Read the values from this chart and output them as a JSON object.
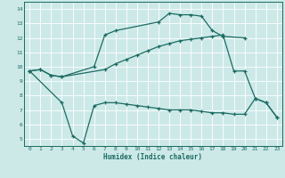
{
  "xlabel": "Humidex (Indice chaleur)",
  "xlim": [
    -0.5,
    23.5
  ],
  "ylim": [
    4.5,
    14.5
  ],
  "xticks": [
    0,
    1,
    2,
    3,
    4,
    5,
    6,
    7,
    8,
    9,
    10,
    11,
    12,
    13,
    14,
    15,
    16,
    17,
    18,
    19,
    20,
    21,
    22,
    23
  ],
  "yticks": [
    5,
    6,
    7,
    8,
    9,
    10,
    11,
    12,
    13,
    14
  ],
  "bg_color": "#cce9e8",
  "line_color": "#1b6b62",
  "grid_color": "#ffffff",
  "s1_x": [
    0,
    1,
    2,
    3,
    6,
    7,
    8,
    12,
    13,
    14,
    15,
    16,
    17,
    18,
    20
  ],
  "s1_y": [
    9.7,
    9.8,
    9.4,
    9.3,
    10.0,
    12.2,
    12.5,
    13.1,
    13.7,
    13.6,
    13.6,
    13.5,
    12.5,
    12.1,
    12.0
  ],
  "s2_x": [
    0,
    1,
    2,
    3,
    7,
    8,
    9,
    10,
    11,
    12,
    13,
    14,
    15,
    16,
    17,
    18,
    19,
    20,
    21,
    22,
    23
  ],
  "s2_y": [
    9.7,
    9.8,
    9.4,
    9.3,
    9.8,
    10.2,
    10.5,
    10.8,
    11.1,
    11.4,
    11.6,
    11.8,
    11.9,
    12.0,
    12.1,
    12.2,
    9.7,
    9.7,
    7.8,
    7.5,
    6.5
  ],
  "s3_x": [
    0,
    3,
    4,
    5,
    6,
    7,
    8,
    9,
    10,
    11,
    12,
    13,
    14,
    15,
    16,
    17,
    18,
    19,
    20,
    21,
    22,
    23
  ],
  "s3_y": [
    9.7,
    7.5,
    5.2,
    4.7,
    7.3,
    7.5,
    7.5,
    7.4,
    7.3,
    7.2,
    7.1,
    7.0,
    7.0,
    7.0,
    6.9,
    6.8,
    6.8,
    6.7,
    6.7,
    7.8,
    7.5,
    6.5
  ]
}
